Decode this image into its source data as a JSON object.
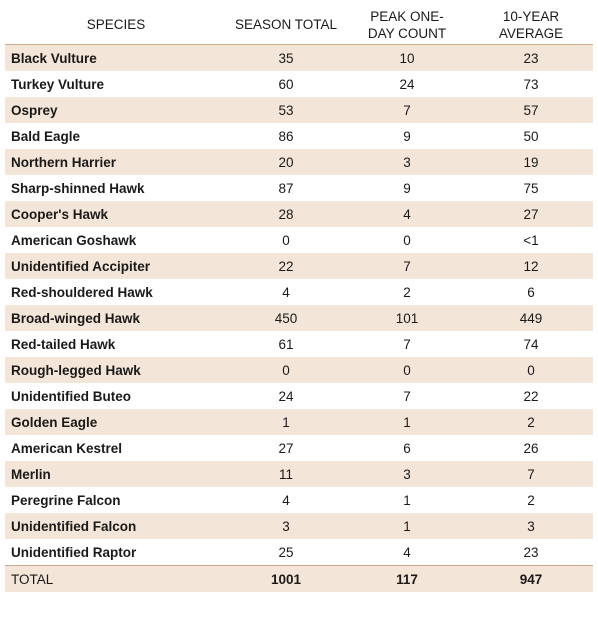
{
  "table": {
    "headers": {
      "species": "SPECIES",
      "season_total": "SEASON TOTAL",
      "peak_one_day": "PEAK ONE-DAY COUNT",
      "ten_year_avg": "10-YEAR AVERAGE"
    },
    "rows": [
      {
        "species": "Black Vulture",
        "season_total": "35",
        "peak": "10",
        "avg": "23"
      },
      {
        "species": "Turkey Vulture",
        "season_total": "60",
        "peak": "24",
        "avg": "73"
      },
      {
        "species": "Osprey",
        "season_total": "53",
        "peak": "7",
        "avg": "57"
      },
      {
        "species": "Bald Eagle",
        "season_total": "86",
        "peak": "9",
        "avg": "50"
      },
      {
        "species": "Northern Harrier",
        "season_total": "20",
        "peak": "3",
        "avg": "19"
      },
      {
        "species": "Sharp-shinned Hawk",
        "season_total": "87",
        "peak": "9",
        "avg": "75"
      },
      {
        "species": "Cooper's Hawk",
        "season_total": "28",
        "peak": "4",
        "avg": "27"
      },
      {
        "species": "American Goshawk",
        "season_total": "0",
        "peak": "0",
        "avg": "<1"
      },
      {
        "species": "Unidentified Accipiter",
        "season_total": "22",
        "peak": "7",
        "avg": "12"
      },
      {
        "species": "Red-shouldered Hawk",
        "season_total": "4",
        "peak": "2",
        "avg": "6"
      },
      {
        "species": "Broad-winged Hawk",
        "season_total": "450",
        "peak": "101",
        "avg": "449"
      },
      {
        "species": "Red-tailed Hawk",
        "season_total": "61",
        "peak": "7",
        "avg": "74"
      },
      {
        "species": "Rough-legged Hawk",
        "season_total": "0",
        "peak": "0",
        "avg": "0"
      },
      {
        "species": "Unidentified Buteo",
        "season_total": "24",
        "peak": "7",
        "avg": "22"
      },
      {
        "species": "Golden Eagle",
        "season_total": "1",
        "peak": "1",
        "avg": "2"
      },
      {
        "species": "American Kestrel",
        "season_total": "27",
        "peak": "6",
        "avg": "26"
      },
      {
        "species": "Merlin",
        "season_total": "11",
        "peak": "3",
        "avg": "7"
      },
      {
        "species": "Peregrine Falcon",
        "season_total": "4",
        "peak": "1",
        "avg": "2"
      },
      {
        "species": "Unidentified Falcon",
        "season_total": "3",
        "peak": "1",
        "avg": "3"
      },
      {
        "species": "Unidentified Raptor",
        "season_total": "25",
        "peak": "4",
        "avg": "23"
      }
    ],
    "total": {
      "label": "TOTAL",
      "season_total": "1001",
      "peak": "117",
      "avg": "947"
    }
  },
  "colors": {
    "shaded_row": "#f3e5d8",
    "rule": "#c9a98a"
  }
}
